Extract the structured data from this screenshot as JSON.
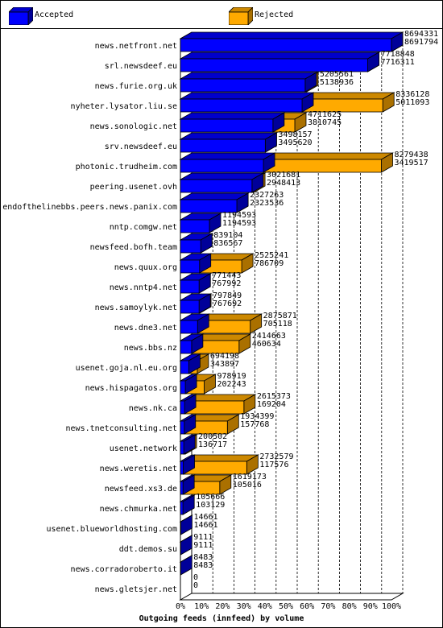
{
  "chart_data": {
    "type": "bar",
    "orientation": "horizontal",
    "title": "Outgoing feeds (innfeed) by volume",
    "xlim": [
      0,
      100
    ],
    "x_unit": "%",
    "grid": true,
    "legend_position": "top",
    "ticks": [
      "0%",
      "10%",
      "20%",
      "30%",
      "40%",
      "50%",
      "60%",
      "70%",
      "80%",
      "90%",
      "100%"
    ],
    "series": [
      {
        "name": "Accepted",
        "color": "#0000ff"
      },
      {
        "name": "Rejected",
        "color": "#ffaa00"
      }
    ],
    "categories": [
      "news.netfront.net",
      "srl.newsdeef.eu",
      "news.furie.org.uk",
      "nyheter.lysator.liu.se",
      "news.sonologic.net",
      "srv.newsdeef.eu",
      "photonic.trudheim.com",
      "peering.usenet.ovh",
      "endofthelinebbs.peers.news.panix.com",
      "nntp.comgw.net",
      "newsfeed.bofh.team",
      "news.quux.org",
      "news.nntp4.net",
      "news.samoylyk.net",
      "news.dne3.net",
      "news.bbs.nz",
      "usenet.goja.nl.eu.org",
      "news.hispagatos.org",
      "news.nk.ca",
      "news.tnetconsulting.net",
      "usenet.network",
      "news.weretis.net",
      "newsfeed.xs3.de",
      "news.chmurka.net",
      "usenet.blueworldhosting.com",
      "ddt.demos.su",
      "news.corradoroberto.it",
      "news.gletsjer.net"
    ],
    "totals": [
      8694331,
      7718848,
      5205561,
      8336128,
      4711625,
      3498157,
      8279438,
      3021681,
      2327263,
      1194593,
      839104,
      2525241,
      771443,
      797849,
      2875871,
      2414663,
      694198,
      978919,
      2615373,
      1934399,
      200502,
      2732579,
      1619173,
      105666,
      14661,
      9111,
      8483,
      0
    ],
    "accepted": [
      8691794,
      7716311,
      5138936,
      5011093,
      3810745,
      3495620,
      3419517,
      2948413,
      2323536,
      1194593,
      836567,
      786709,
      767992,
      767692,
      705118,
      460634,
      343897,
      202243,
      169204,
      157768,
      136717,
      117576,
      105016,
      103129,
      14661,
      9111,
      8483,
      0
    ],
    "total_labels": [
      "8694331",
      "7718848",
      "5205561",
      "8336128",
      "4711625",
      "3498157",
      "8279438",
      "3021681",
      "2327263",
      "1194593",
      "839104",
      "2525241",
      "771443",
      "797849",
      "2875871",
      "2414663",
      "694198",
      "978919",
      "2615373",
      "1934399",
      "200502",
      "2732579",
      "1619173",
      "105666",
      "14661",
      "9111",
      "8483",
      "0"
    ],
    "accepted_labels": [
      "8691794",
      "7716311",
      "5138936",
      "5011093",
      "3810745",
      "3495620",
      "3419517",
      "2948413",
      "2323536",
      "1194593",
      "836567",
      "786709",
      "767992",
      "767692",
      "705118",
      "460634",
      "343897",
      "202243",
      "169204",
      "157768",
      "136717",
      "117576",
      "105016",
      "103129",
      "14661",
      "9111",
      "8483",
      "0"
    ]
  }
}
